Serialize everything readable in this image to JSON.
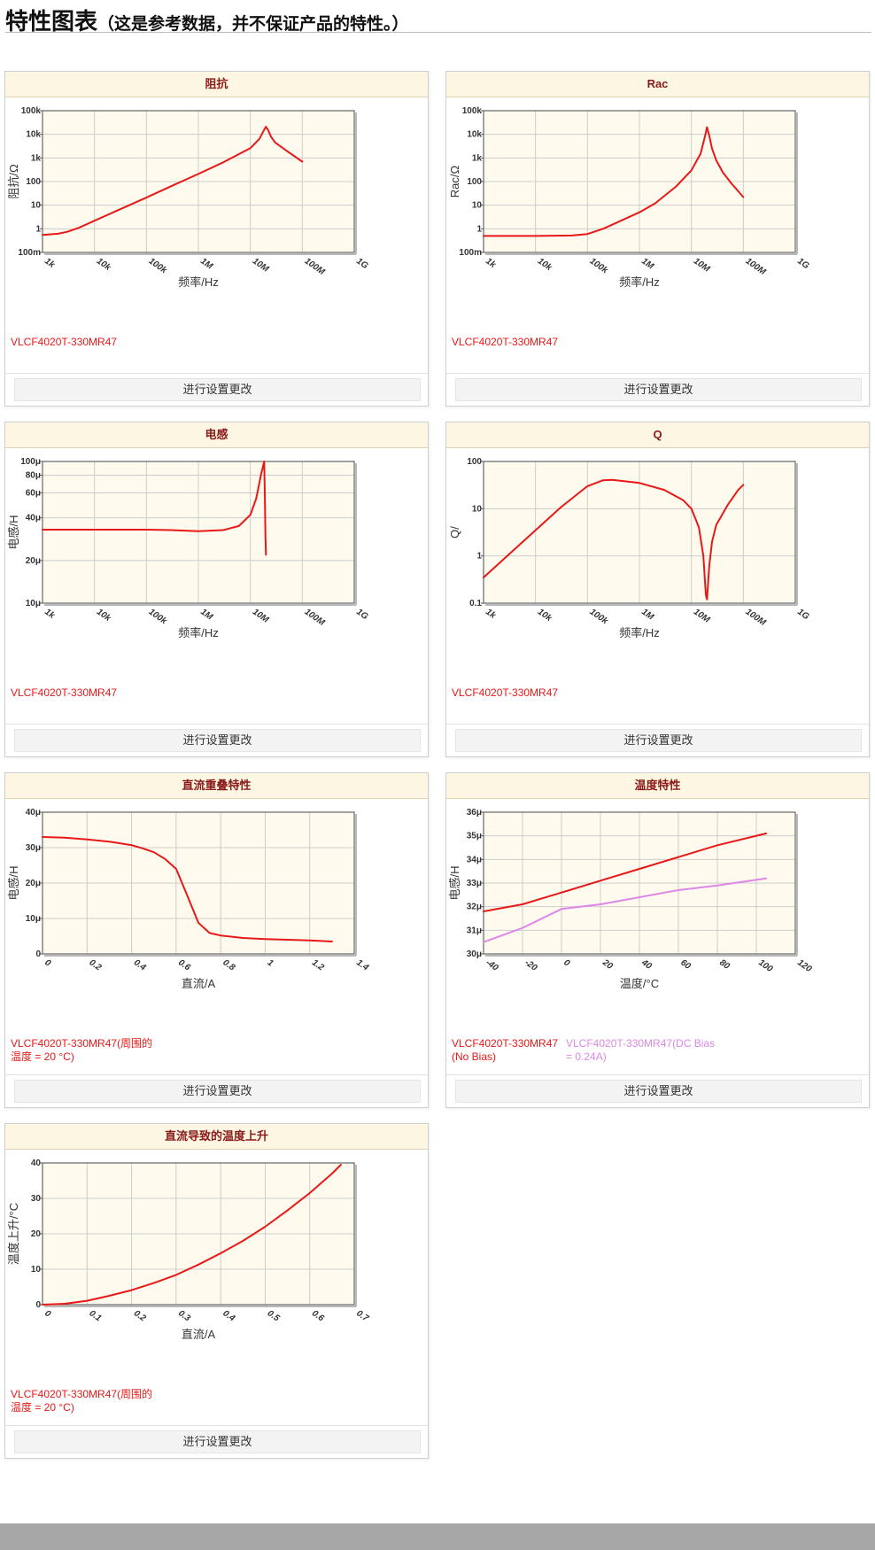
{
  "header": {
    "title": "特性图表",
    "subtitle": "（这是参考数据，并不保证产品的特性。）"
  },
  "button_label": "进行设置更改",
  "colors": {
    "plot_bg": "#fefbee",
    "grid": "#cccccc",
    "series_red": "#e81818",
    "series_violet": "#dd88e6",
    "header_bg": "#fcf6e2",
    "header_text": "#8a1a1a",
    "footer_bar": "#a7a7a7"
  },
  "cards": [
    {
      "title": "阻抗",
      "legend": [
        {
          "lines": [
            "VLCF4020T-330MR47"
          ],
          "color": "#e81818"
        }
      ]
    },
    {
      "title": "Rac",
      "legend": [
        {
          "lines": [
            "VLCF4020T-330MR47"
          ],
          "color": "#e81818"
        }
      ]
    },
    {
      "title": "电感",
      "legend": [
        {
          "lines": [
            "VLCF4020T-330MR47"
          ],
          "color": "#e81818"
        }
      ]
    },
    {
      "title": "Q",
      "legend": [
        {
          "lines": [
            "VLCF4020T-330MR47"
          ],
          "color": "#e81818"
        }
      ]
    },
    {
      "title": "直流重叠特性",
      "legend": [
        {
          "lines": [
            "VLCF4020T-330MR47(周围的",
            "温度 = 20 °C)"
          ],
          "color": "#e81818"
        }
      ]
    },
    {
      "title": "温度特性",
      "legend": [
        {
          "lines": [
            "VLCF4020T-330MR47",
            "(No Bias)"
          ],
          "color": "#e81818"
        },
        {
          "lines": [
            "VLCF4020T-330MR47(DC Bias",
            "= 0.24A)"
          ],
          "color": "#dd88e6"
        }
      ]
    },
    {
      "title": "直流导致的温度上升",
      "legend": [
        {
          "lines": [
            "VLCF4020T-330MR47(周围的",
            "温度 = 20 °C)"
          ],
          "color": "#e81818"
        }
      ]
    }
  ],
  "chart_data": [
    {
      "type": "line",
      "title": "阻抗",
      "xlabel": "频率/Hz",
      "ylabel": "阻抗/Ω",
      "xscale": "log",
      "yscale": "log",
      "xlim": [
        1000,
        1000000000
      ],
      "ylim": [
        0.1,
        100000
      ],
      "xticks": [
        1000,
        10000,
        100000,
        1000000,
        10000000,
        100000000,
        1000000000
      ],
      "xtick_labels": [
        "1k",
        "10k",
        "100k",
        "1M",
        "10M",
        "100M",
        "1G"
      ],
      "yticks": [
        0.1,
        1,
        10,
        100,
        1000,
        10000,
        100000
      ],
      "ytick_labels": [
        "100m",
        "1",
        "10",
        "100",
        "1k",
        "10k",
        "100k"
      ],
      "grid": true,
      "series": [
        {
          "name": "VLCF4020T-330MR47",
          "color": "#e81818",
          "x": [
            1000,
            2000,
            3000,
            5000,
            10000,
            30000,
            100000,
            300000,
            1000000,
            3000000,
            10000000,
            15000000,
            18000000,
            20000000,
            22000000,
            25000000,
            30000000,
            50000000,
            100000000
          ],
          "y": [
            0.55,
            0.62,
            0.75,
            1.1,
            2.2,
            6.5,
            21,
            64,
            210,
            650,
            2600,
            6500,
            14000,
            21000,
            15000,
            8000,
            4500,
            2000,
            700
          ]
        }
      ]
    },
    {
      "type": "line",
      "title": "Rac",
      "xlabel": "频率/Hz",
      "ylabel": "Rac/Ω",
      "xscale": "log",
      "yscale": "log",
      "xlim": [
        1000,
        1000000000
      ],
      "ylim": [
        0.1,
        100000
      ],
      "xticks": [
        1000,
        10000,
        100000,
        1000000,
        10000000,
        100000000,
        1000000000
      ],
      "xtick_labels": [
        "1k",
        "10k",
        "100k",
        "1M",
        "10M",
        "100M",
        "1G"
      ],
      "yticks": [
        0.1,
        1,
        10,
        100,
        1000,
        10000,
        100000
      ],
      "ytick_labels": [
        "100m",
        "1",
        "10",
        "100",
        "1k",
        "10k",
        "100k"
      ],
      "grid": true,
      "series": [
        {
          "name": "VLCF4020T-330MR47",
          "color": "#e81818",
          "x": [
            1000,
            10000,
            50000,
            100000,
            200000,
            400000,
            1000000,
            2000000,
            5000000,
            10000000,
            15000000,
            18000000,
            20000000,
            22000000,
            25000000,
            30000000,
            40000000,
            60000000,
            100000000
          ],
          "y": [
            0.5,
            0.5,
            0.52,
            0.6,
            1.0,
            2.0,
            5.0,
            12,
            60,
            300,
            1500,
            7000,
            20000,
            9000,
            2500,
            800,
            250,
            80,
            22
          ]
        }
      ]
    },
    {
      "type": "line",
      "title": "电感",
      "xlabel": "频率/Hz",
      "ylabel": "电感/H",
      "xscale": "log",
      "yscale": "log",
      "xlim": [
        1000,
        1000000000
      ],
      "ylim": [
        1e-05,
        0.0001
      ],
      "xticks": [
        1000,
        10000,
        100000,
        1000000,
        10000000,
        100000000,
        1000000000
      ],
      "xtick_labels": [
        "1k",
        "10k",
        "100k",
        "1M",
        "10M",
        "100M",
        "1G"
      ],
      "yticks": [
        1e-05,
        2e-05,
        4e-05,
        6e-05,
        8e-05,
        0.0001
      ],
      "ytick_labels": [
        "10μ",
        "20μ",
        "40μ",
        "60μ",
        "80μ",
        "100μ"
      ],
      "grid": true,
      "series": [
        {
          "name": "VLCF4020T-330MR47",
          "color": "#e81818",
          "x": [
            1000,
            10000,
            100000,
            300000,
            1000000,
            3000000,
            6000000,
            10000000,
            13000000,
            16000000,
            18500000,
            19000000,
            19500000,
            20000000
          ],
          "y": [
            3.3e-05,
            3.3e-05,
            3.3e-05,
            3.28e-05,
            3.22e-05,
            3.28e-05,
            3.5e-05,
            4.2e-05,
            5.5e-05,
            8e-05,
            0.0001,
            6e-05,
            3e-05,
            2.2e-05
          ]
        }
      ]
    },
    {
      "type": "line",
      "title": "Q",
      "xlabel": "频率/Hz",
      "ylabel": "Q/",
      "xscale": "log",
      "yscale": "log",
      "xlim": [
        1000,
        1000000000
      ],
      "ylim": [
        0.1,
        100
      ],
      "xticks": [
        1000,
        10000,
        100000,
        1000000,
        10000000,
        100000000,
        1000000000
      ],
      "xtick_labels": [
        "1k",
        "10k",
        "100k",
        "1M",
        "10M",
        "100M",
        "1G"
      ],
      "yticks": [
        0.1,
        1,
        10,
        100
      ],
      "ytick_labels": [
        "0.1",
        "1",
        "10",
        "100"
      ],
      "grid": true,
      "series": [
        {
          "name": "VLCF4020T-330MR47",
          "color": "#e81818",
          "x": [
            1000,
            3000,
            10000,
            30000,
            100000,
            200000,
            300000,
            1000000,
            3000000,
            7000000,
            10000000,
            14000000,
            17000000,
            19000000,
            20000000,
            22000000,
            25000000,
            30000000,
            50000000,
            80000000,
            100000000
          ],
          "y": [
            0.35,
            1.05,
            3.5,
            10.5,
            30,
            40,
            41,
            35,
            25,
            15,
            10,
            4,
            1.0,
            0.15,
            0.12,
            0.6,
            2.0,
            4.5,
            12,
            25,
            32
          ]
        }
      ]
    },
    {
      "type": "line",
      "title": "直流重叠特性",
      "xlabel": "直流/A",
      "ylabel": "电感/H",
      "xscale": "linear",
      "yscale": "linear",
      "xlim": [
        0,
        1.4
      ],
      "ylim": [
        0,
        4e-05
      ],
      "xticks": [
        0,
        0.2,
        0.4,
        0.6,
        0.8,
        1,
        1.2,
        1.4
      ],
      "xtick_labels": [
        "0",
        "0.2",
        "0.4",
        "0.6",
        "0.8",
        "1",
        "1.2",
        "1.4"
      ],
      "yticks": [
        0,
        1e-05,
        2e-05,
        3e-05,
        4e-05
      ],
      "ytick_labels": [
        "0",
        "10μ",
        "20μ",
        "30μ",
        "40μ"
      ],
      "grid": true,
      "series": [
        {
          "name": "VLCF4020T-330MR47(周围的温度 = 20 °C)",
          "color": "#e81818",
          "x": [
            0,
            0.1,
            0.2,
            0.3,
            0.4,
            0.45,
            0.5,
            0.55,
            0.6,
            0.65,
            0.7,
            0.75,
            0.8,
            0.9,
            1.0,
            1.2,
            1.3
          ],
          "y": [
            3.3e-05,
            3.28e-05,
            3.23e-05,
            3.17e-05,
            3.07e-05,
            2.98e-05,
            2.87e-05,
            2.68e-05,
            2.4e-05,
            1.65e-05,
            8.8e-06,
            5.9e-06,
            5.2e-06,
            4.5e-06,
            4.2e-06,
            3.8e-06,
            3.5e-06
          ]
        }
      ]
    },
    {
      "type": "line",
      "title": "温度特性",
      "xlabel": "温度/°C",
      "ylabel": "电感/H",
      "xscale": "linear",
      "yscale": "linear",
      "xlim": [
        -40,
        120
      ],
      "ylim": [
        3e-05,
        3.6e-05
      ],
      "xticks": [
        -40,
        -20,
        0,
        20,
        40,
        60,
        80,
        100,
        120
      ],
      "xtick_labels": [
        "-40",
        "-20",
        "0",
        "20",
        "40",
        "60",
        "80",
        "100",
        "120"
      ],
      "yticks": [
        3e-05,
        3.1e-05,
        3.2e-05,
        3.3e-05,
        3.4e-05,
        3.5e-05,
        3.6e-05
      ],
      "ytick_labels": [
        "30μ",
        "31μ",
        "32μ",
        "33μ",
        "34μ",
        "35μ",
        "36μ"
      ],
      "grid": true,
      "series": [
        {
          "name": "VLCF4020T-330MR47 (No Bias)",
          "color": "#e81818",
          "x": [
            -40,
            -20,
            0,
            20,
            40,
            60,
            80,
            105
          ],
          "y": [
            3.18e-05,
            3.21e-05,
            3.26e-05,
            3.31e-05,
            3.36e-05,
            3.41e-05,
            3.46e-05,
            3.51e-05
          ]
        },
        {
          "name": "VLCF4020T-330MR47(DC Bias = 0.24A)",
          "color": "#dd88e6",
          "x": [
            -40,
            -20,
            0,
            20,
            40,
            60,
            80,
            105
          ],
          "y": [
            3.05e-05,
            3.11e-05,
            3.19e-05,
            3.21e-05,
            3.24e-05,
            3.27e-05,
            3.29e-05,
            3.32e-05
          ]
        }
      ]
    },
    {
      "type": "line",
      "title": "直流导致的温度上升",
      "xlabel": "直流/A",
      "ylabel": "温度上升/°C",
      "xscale": "linear",
      "yscale": "linear",
      "xlim": [
        0,
        0.7
      ],
      "ylim": [
        0,
        40
      ],
      "xticks": [
        0,
        0.1,
        0.2,
        0.3,
        0.4,
        0.5,
        0.6,
        0.7
      ],
      "xtick_labels": [
        "0",
        "0.1",
        "0.2",
        "0.3",
        "0.4",
        "0.5",
        "0.6",
        "0.7"
      ],
      "yticks": [
        0,
        10,
        20,
        30,
        40
      ],
      "ytick_labels": [
        "0",
        "10",
        "20",
        "30",
        "40"
      ],
      "grid": true,
      "series": [
        {
          "name": "VLCF4020T-330MR47(周围的温度 = 20 °C)",
          "color": "#e81818",
          "x": [
            0,
            0.05,
            0.1,
            0.15,
            0.2,
            0.25,
            0.3,
            0.35,
            0.4,
            0.45,
            0.5,
            0.55,
            0.6,
            0.65,
            0.67
          ],
          "y": [
            0,
            0.25,
            1.1,
            2.5,
            4.1,
            6.1,
            8.4,
            11.3,
            14.5,
            18.0,
            22.0,
            26.6,
            31.5,
            37.0,
            39.5
          ]
        }
      ]
    }
  ]
}
